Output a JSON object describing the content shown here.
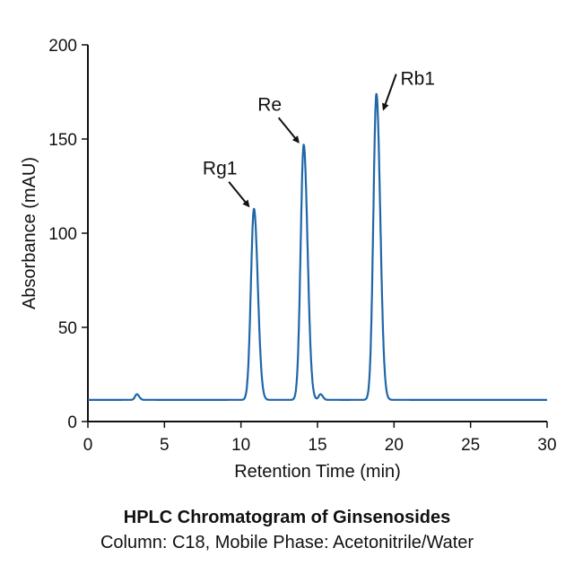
{
  "chart_data": {
    "type": "line",
    "title": "HPLC Chromatogram of Ginsenosides",
    "subtitle": "Column: C18, Mobile Phase: Acetonitrile/Water",
    "xlabel": "Retention Time (min)",
    "ylabel": "Absorbance (mAU)",
    "xlim": [
      0,
      30
    ],
    "ylim": [
      0,
      200
    ],
    "xticks": [
      "0",
      "5",
      "10",
      "15",
      "20",
      "25",
      "30"
    ],
    "yticks": [
      "0",
      "50",
      "100",
      "150",
      "200"
    ],
    "grid": false,
    "baseline": 11.5,
    "line_color": "#1f66a8",
    "peaks": [
      {
        "label": "",
        "time": 3.2,
        "height": 14.5
      },
      {
        "label": "Rg1",
        "time": 10.85,
        "height": 113
      },
      {
        "label": "Re",
        "time": 14.1,
        "height": 147
      },
      {
        "label": "",
        "time": 15.2,
        "height": 14.5
      },
      {
        "label": "Rb1",
        "time": 18.85,
        "height": 174
      }
    ]
  }
}
